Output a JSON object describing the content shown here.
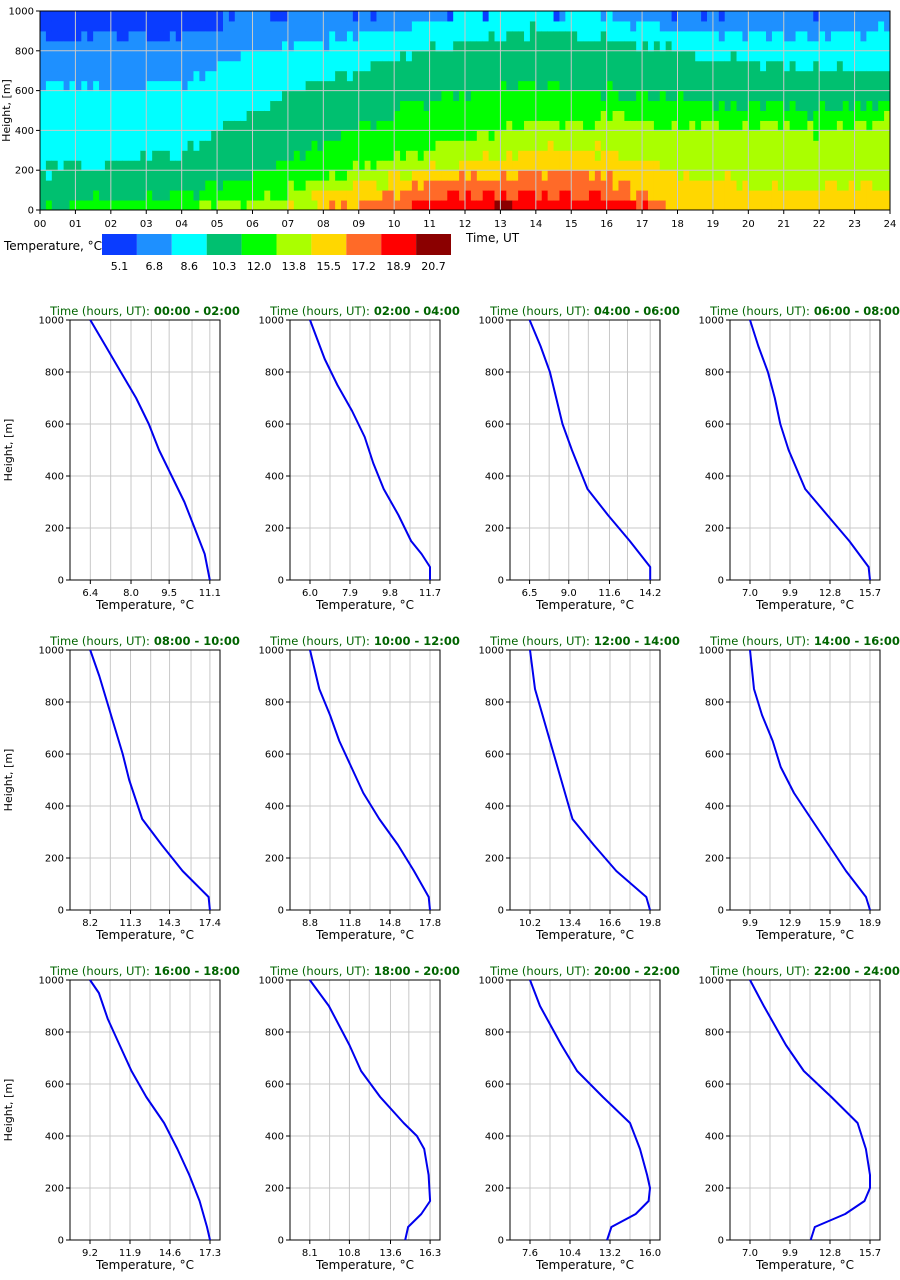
{
  "heatmap": {
    "ylabel": "Height, [m]",
    "xlabel": "Time, UT",
    "x_ticks": [
      "00",
      "01",
      "02",
      "03",
      "04",
      "05",
      "06",
      "07",
      "08",
      "09",
      "10",
      "11",
      "12",
      "13",
      "14",
      "15",
      "16",
      "17",
      "18",
      "19",
      "20",
      "21",
      "22",
      "23",
      "24"
    ],
    "y_ticks": [
      "0",
      "200",
      "400",
      "600",
      "800",
      "1000"
    ],
    "colorbar_label": "Temperature, °C",
    "colorbar_values": [
      "5.1",
      "6.8",
      "8.6",
      "10.3",
      "12.0",
      "13.8",
      "15.5",
      "17.2",
      "18.9",
      "20.7"
    ],
    "colors": [
      "#0a3cff",
      "#1e90ff",
      "#00ffff",
      "#00c070",
      "#00ff00",
      "#aaff00",
      "#ffd700",
      "#ff6a28",
      "#ff0000",
      "#8b0000"
    ]
  },
  "line_color": "#0000ee",
  "title_color": "#006400",
  "chart_data": [
    {
      "type": "heatmap",
      "title": "",
      "xlabel": "Time, UT",
      "ylabel": "Height, [m]",
      "xlim": [
        0,
        24
      ],
      "ylim": [
        0,
        1000
      ],
      "levels": [
        5.1,
        6.8,
        8.6,
        10.3,
        12.0,
        13.8,
        15.5,
        17.2,
        18.9,
        20.7
      ],
      "boundaries_description_by_hour": {
        "hour": [
          0,
          2,
          4,
          6,
          8,
          10,
          12,
          14,
          16,
          18,
          20,
          22,
          24
        ],
        "b_6_8": [
          850,
          880,
          870,
          1000,
          1000,
          1000,
          1000,
          1000,
          1000,
          1000,
          1000,
          1000,
          1000
        ],
        "b_8_6": [
          620,
          600,
          650,
          800,
          850,
          900,
          1000,
          1000,
          970,
          900,
          880,
          880,
          900
        ],
        "b_10_3": [
          200,
          240,
          290,
          500,
          650,
          750,
          870,
          900,
          850,
          800,
          750,
          700,
          700
        ],
        "b_12_0": [
          0,
          60,
          60,
          170,
          330,
          500,
          600,
          620,
          600,
          550,
          520,
          500,
          520
        ],
        "b_13_8": [
          -1,
          -1,
          0,
          50,
          150,
          260,
          360,
          430,
          450,
          420,
          400,
          400,
          450
        ],
        "b_15_5": [
          -1,
          -1,
          -1,
          0,
          60,
          150,
          250,
          300,
          300,
          200,
          130,
          100,
          120
        ],
        "b_17_2": [
          -1,
          -1,
          -1,
          -1,
          0,
          80,
          150,
          200,
          170,
          0,
          -1,
          -1,
          -1
        ],
        "b_18_9": [
          -1,
          -1,
          -1,
          -1,
          -1,
          -1,
          70,
          90,
          60,
          -1,
          -1,
          -1,
          -1
        ]
      }
    },
    {
      "type": "line",
      "title_prefix": "Time (hours, UT):",
      "title_range": "00:00 - 02:00",
      "xlabel": "Temperature, °C",
      "ylabel": "Height, [m]",
      "ylim": [
        0,
        1000
      ],
      "x_ticks": [
        "6.4",
        "8.0",
        "9.5",
        "11.1"
      ],
      "y_ticks": [
        "0",
        "200",
        "400",
        "600",
        "800",
        "1000"
      ],
      "series": [
        {
          "x": [
            11.1,
            10.9,
            10.5,
            10.1,
            9.6,
            9.1,
            8.7,
            8.2,
            7.6,
            7.0,
            6.4
          ],
          "y": [
            0,
            100,
            200,
            300,
            400,
            500,
            600,
            700,
            800,
            900,
            1000
          ]
        }
      ]
    },
    {
      "type": "line",
      "title_prefix": "Time (hours, UT):",
      "title_range": "02:00 - 04:00",
      "xlabel": "Temperature, °C",
      "ylabel": "Height, [m]",
      "ylim": [
        0,
        1000
      ],
      "x_ticks": [
        "6.0",
        "7.9",
        "9.8",
        "11.7"
      ],
      "y_ticks": [
        "0",
        "200",
        "400",
        "600",
        "800",
        "1000"
      ],
      "series": [
        {
          "x": [
            11.7,
            11.7,
            11.3,
            10.8,
            10.2,
            9.5,
            9.0,
            8.6,
            8.0,
            7.3,
            6.7,
            6.0
          ],
          "y": [
            0,
            50,
            100,
            150,
            250,
            350,
            450,
            550,
            650,
            750,
            850,
            1000
          ]
        }
      ]
    },
    {
      "type": "line",
      "title_prefix": "Time (hours, UT):",
      "title_range": "04:00 - 06:00",
      "xlabel": "Temperature, °C",
      "ylabel": "Height, [m]",
      "ylim": [
        0,
        1000
      ],
      "x_ticks": [
        "6.5",
        "9.0",
        "11.6",
        "14.2"
      ],
      "y_ticks": [
        "0",
        "200",
        "400",
        "600",
        "800",
        "1000"
      ],
      "series": [
        {
          "x": [
            14.2,
            14.2,
            12.9,
            11.5,
            10.2,
            9.2,
            8.6,
            8.2,
            7.8,
            7.2,
            6.5
          ],
          "y": [
            0,
            50,
            150,
            250,
            350,
            500,
            600,
            700,
            800,
            900,
            1000
          ]
        }
      ]
    },
    {
      "type": "line",
      "title_prefix": "Time (hours, UT):",
      "title_range": "06:00 - 08:00",
      "xlabel": "Temperature, °C",
      "ylabel": "Height, [m]",
      "ylim": [
        0,
        1000
      ],
      "x_ticks": [
        "7.0",
        "9.9",
        "12.8",
        "15.7"
      ],
      "y_ticks": [
        "0",
        "200",
        "400",
        "600",
        "800",
        "1000"
      ],
      "series": [
        {
          "x": [
            15.7,
            15.6,
            14.2,
            12.6,
            11.0,
            9.8,
            9.2,
            8.8,
            8.3,
            7.6,
            7.0
          ],
          "y": [
            0,
            50,
            150,
            250,
            350,
            500,
            600,
            700,
            800,
            900,
            1000
          ]
        }
      ]
    },
    {
      "type": "line",
      "title_prefix": "Time (hours, UT):",
      "title_range": "08:00 - 10:00",
      "xlabel": "Temperature, °C",
      "ylabel": "Height, [m]",
      "ylim": [
        0,
        1000
      ],
      "x_ticks": [
        "8.2",
        "11.3",
        "14.3",
        "17.4"
      ],
      "y_ticks": [
        "0",
        "200",
        "400",
        "600",
        "800",
        "1000"
      ],
      "series": [
        {
          "x": [
            17.4,
            17.3,
            15.3,
            13.7,
            12.2,
            11.2,
            10.7,
            10.1,
            9.5,
            8.9,
            8.2
          ],
          "y": [
            0,
            50,
            150,
            250,
            350,
            500,
            600,
            700,
            800,
            900,
            1000
          ]
        }
      ]
    },
    {
      "type": "line",
      "title_prefix": "Time (hours, UT):",
      "title_range": "10:00 - 12:00",
      "xlabel": "Temperature, °C",
      "ylabel": "Height, [m]",
      "ylim": [
        0,
        1000
      ],
      "x_ticks": [
        "8.8",
        "11.8",
        "14.8",
        "17.8"
      ],
      "y_ticks": [
        "0",
        "200",
        "400",
        "600",
        "800",
        "1000"
      ],
      "series": [
        {
          "x": [
            17.8,
            17.7,
            16.6,
            15.4,
            14.0,
            12.8,
            11.9,
            11.0,
            10.3,
            9.5,
            8.8
          ],
          "y": [
            0,
            50,
            150,
            250,
            350,
            450,
            550,
            650,
            750,
            850,
            1000
          ]
        }
      ]
    },
    {
      "type": "line",
      "title_prefix": "Time (hours, UT):",
      "title_range": "12:00 - 14:00",
      "xlabel": "Temperature, °C",
      "ylabel": "Height, [m]",
      "ylim": [
        0,
        1000
      ],
      "x_ticks": [
        "10.2",
        "13.4",
        "16.6",
        "19.8"
      ],
      "y_ticks": [
        "0",
        "200",
        "400",
        "600",
        "800",
        "1000"
      ],
      "series": [
        {
          "x": [
            19.8,
            19.5,
            17.1,
            15.3,
            13.6,
            13.0,
            12.4,
            11.8,
            11.2,
            10.6,
            10.2
          ],
          "y": [
            0,
            50,
            150,
            250,
            350,
            450,
            550,
            650,
            750,
            850,
            1000
          ]
        }
      ]
    },
    {
      "type": "line",
      "title_prefix": "Time (hours, UT):",
      "title_range": "14:00 - 16:00",
      "xlabel": "Temperature, °C",
      "ylabel": "Height, [m]",
      "ylim": [
        0,
        1000
      ],
      "x_ticks": [
        "9.9",
        "12.9",
        "15.9",
        "18.9"
      ],
      "y_ticks": [
        "0",
        "200",
        "400",
        "600",
        "800",
        "1000"
      ],
      "series": [
        {
          "x": [
            18.9,
            18.6,
            17.1,
            15.8,
            14.5,
            13.2,
            12.2,
            11.6,
            10.8,
            10.2,
            9.9
          ],
          "y": [
            0,
            50,
            150,
            250,
            350,
            450,
            550,
            650,
            750,
            850,
            1000
          ]
        }
      ]
    },
    {
      "type": "line",
      "title_prefix": "Time (hours, UT):",
      "title_range": "16:00 - 18:00",
      "xlabel": "Temperature, °C",
      "ylabel": "Height, [m]",
      "ylim": [
        0,
        1000
      ],
      "x_ticks": [
        "9.2",
        "11.9",
        "14.6",
        "17.3"
      ],
      "y_ticks": [
        "0",
        "200",
        "400",
        "600",
        "800",
        "1000"
      ],
      "series": [
        {
          "x": [
            17.3,
            17.1,
            16.6,
            15.9,
            15.1,
            14.2,
            13.0,
            12.0,
            11.2,
            10.4,
            9.8,
            9.2
          ],
          "y": [
            0,
            50,
            150,
            250,
            350,
            450,
            550,
            650,
            750,
            850,
            950,
            1000
          ]
        }
      ]
    },
    {
      "type": "line",
      "title_prefix": "Time (hours, UT):",
      "title_range": "18:00 - 20:00",
      "xlabel": "Temperature, °C",
      "ylabel": "Height, [m]",
      "ylim": [
        0,
        1000
      ],
      "x_ticks": [
        "8.1",
        "10.8",
        "13.6",
        "16.3"
      ],
      "y_ticks": [
        "0",
        "200",
        "400",
        "600",
        "800",
        "1000"
      ],
      "series": [
        {
          "x": [
            14.6,
            14.8,
            15.7,
            16.3,
            16.2,
            15.9,
            15.4,
            14.5,
            12.9,
            11.6,
            10.8,
            9.4,
            8.1
          ],
          "y": [
            0,
            50,
            100,
            150,
            250,
            350,
            400,
            450,
            550,
            650,
            750,
            900,
            1000
          ]
        }
      ]
    },
    {
      "type": "line",
      "title_prefix": "Time (hours, UT):",
      "title_range": "20:00 - 22:00",
      "xlabel": "Temperature, °C",
      "ylabel": "Height, [m]",
      "ylim": [
        0,
        1000
      ],
      "x_ticks": [
        "7.6",
        "10.4",
        "13.2",
        "16.0"
      ],
      "y_ticks": [
        "0",
        "200",
        "400",
        "600",
        "800",
        "1000"
      ],
      "series": [
        {
          "x": [
            13.0,
            13.3,
            15.0,
            15.9,
            16.0,
            15.8,
            15.3,
            14.6,
            12.7,
            10.9,
            9.8,
            8.3,
            7.6
          ],
          "y": [
            0,
            50,
            100,
            150,
            200,
            250,
            350,
            450,
            550,
            650,
            750,
            900,
            1000
          ]
        }
      ]
    },
    {
      "type": "line",
      "title_prefix": "Time (hours, UT):",
      "title_range": "22:00 - 24:00",
      "xlabel": "Temperature, °C",
      "ylabel": "Height, [m]",
      "ylim": [
        0,
        1000
      ],
      "x_ticks": [
        "7.0",
        "9.9",
        "12.8",
        "15.7"
      ],
      "y_ticks": [
        "0",
        "200",
        "400",
        "600",
        "800",
        "1000"
      ],
      "series": [
        {
          "x": [
            11.4,
            11.7,
            13.9,
            15.3,
            15.7,
            15.7,
            15.4,
            14.8,
            12.9,
            10.9,
            9.6,
            8.0,
            7.0
          ],
          "y": [
            0,
            50,
            100,
            150,
            200,
            250,
            350,
            450,
            550,
            650,
            750,
            900,
            1000
          ]
        }
      ]
    }
  ]
}
